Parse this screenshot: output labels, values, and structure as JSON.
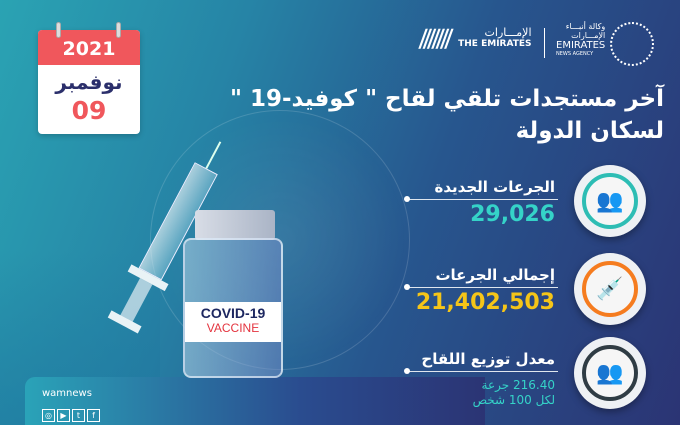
{
  "calendar": {
    "year": "2021",
    "month": "نوفمبر",
    "day": "09"
  },
  "logos": {
    "the_emirates_ar": "الإمـــارات",
    "the_emirates_en": "THE EMIRATES",
    "wam_ar_1": "وكالة أنبـــاء",
    "wam_ar_2": "الإمـــارات",
    "wam_en": "EMIRATES",
    "wam_sub": "NEWS AGENCY"
  },
  "title": {
    "line1": "آخر مستجدات تلقي لقاح \" كوفيد-19 \"",
    "line2": "لسكان الدولة"
  },
  "stats": [
    {
      "label": "الجرعات الجديدة",
      "value": "29,026",
      "color": "#35d3c8",
      "icon": "people-icon"
    },
    {
      "label": "إجمالي الجرعات",
      "value": "21,402,503",
      "color": "#f5c518",
      "icon": "syringe-icon"
    },
    {
      "label": "معدل توزيع اللقاح",
      "value": "216.40 جرعة",
      "value2": "لكل 100 شخص",
      "color": "#35d3c8",
      "icon": "group-icon"
    }
  ],
  "vial": {
    "line1": "COVID-19",
    "line2": "VACCINE"
  },
  "footer": {
    "brand": "wamnews",
    "social": [
      "instagram-icon",
      "youtube-icon",
      "twitter-icon",
      "facebook-icon"
    ]
  }
}
